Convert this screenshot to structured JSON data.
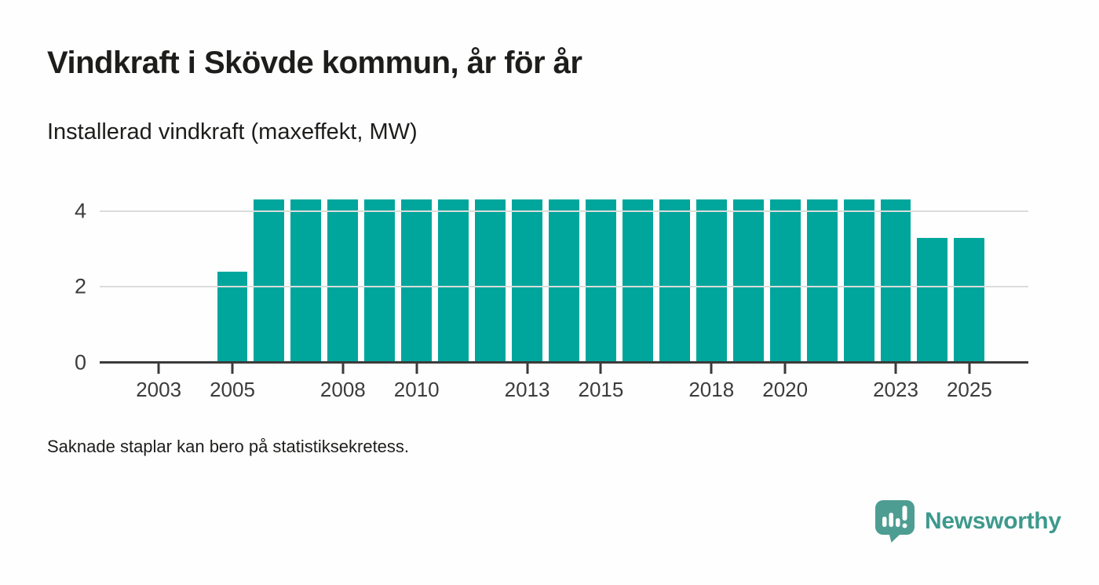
{
  "chart_data": {
    "type": "bar",
    "title": "Vindkraft i Skövde kommun, år för år",
    "subtitle": "Installerad vindkraft (maxeffekt, MW)",
    "ylabel": "Installerad vindkraft (maxeffekt, MW)",
    "xlabel": "",
    "years": [
      2002,
      2003,
      2004,
      2005,
      2006,
      2007,
      2008,
      2009,
      2010,
      2011,
      2012,
      2013,
      2014,
      2015,
      2016,
      2017,
      2018,
      2019,
      2020,
      2021,
      2022,
      2023,
      2024,
      2025
    ],
    "values": [
      null,
      null,
      null,
      2.4,
      4.3,
      4.3,
      4.3,
      4.3,
      4.3,
      4.3,
      4.3,
      4.3,
      4.3,
      4.3,
      4.3,
      4.3,
      4.3,
      4.3,
      4.3,
      4.3,
      4.3,
      4.3,
      3.3,
      3.3
    ],
    "x_ticks": [
      2003,
      2005,
      2008,
      2010,
      2013,
      2015,
      2018,
      2020,
      2023,
      2025
    ],
    "y_ticks": [
      0,
      2,
      4
    ],
    "ylim": [
      0,
      4.6
    ],
    "xlim": [
      2001.4,
      2026.6
    ],
    "grid": true,
    "legend_position": "none",
    "bar_color": "#00a69c",
    "axis_color": "#3b3b3b",
    "grid_color": "#dcdcdc"
  },
  "footnote": {
    "text": "Saknade staplar kan bero på statistiksekretess."
  },
  "brand": {
    "name": "Newsworthy",
    "icon": "newsworthy-speech-bubble-chart-icon",
    "icon_color": "#4e9d92",
    "text_color": "#3d998d"
  }
}
